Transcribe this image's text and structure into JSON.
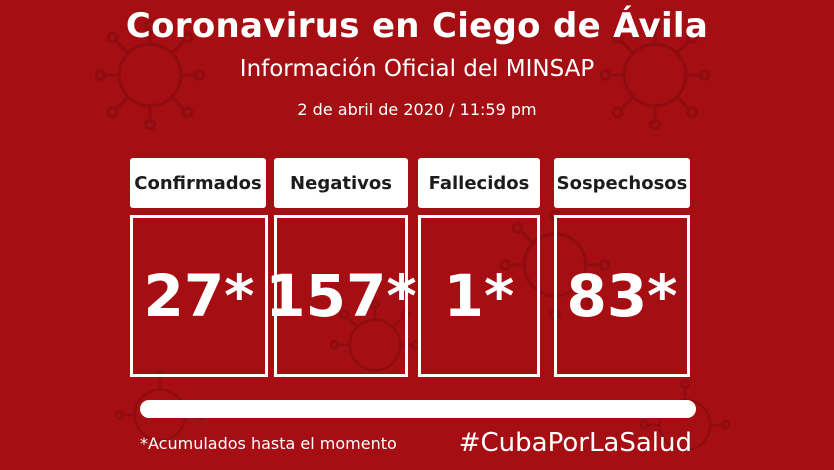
{
  "header": {
    "title": "Coronavirus en Ciego de Ávila",
    "subtitle": "Información Oficial del MINSAP",
    "date": "2 de abril de 2020 / 11:59 pm"
  },
  "stats": [
    {
      "label": "Confirmados",
      "value": "27*"
    },
    {
      "label": "Negativos",
      "value": "157*"
    },
    {
      "label": "Fallecidos",
      "value": "1*"
    },
    {
      "label": "Sospechosos",
      "value": "83*"
    }
  ],
  "footer": {
    "note": "*Acumulados hasta el momento",
    "hashtag": "#CubaPorLaSalud"
  },
  "colors": {
    "background": "#a50f13",
    "text": "#ffffff",
    "label_text": "#1c1c1c"
  },
  "decorations": [
    "coronavirus-icon"
  ]
}
